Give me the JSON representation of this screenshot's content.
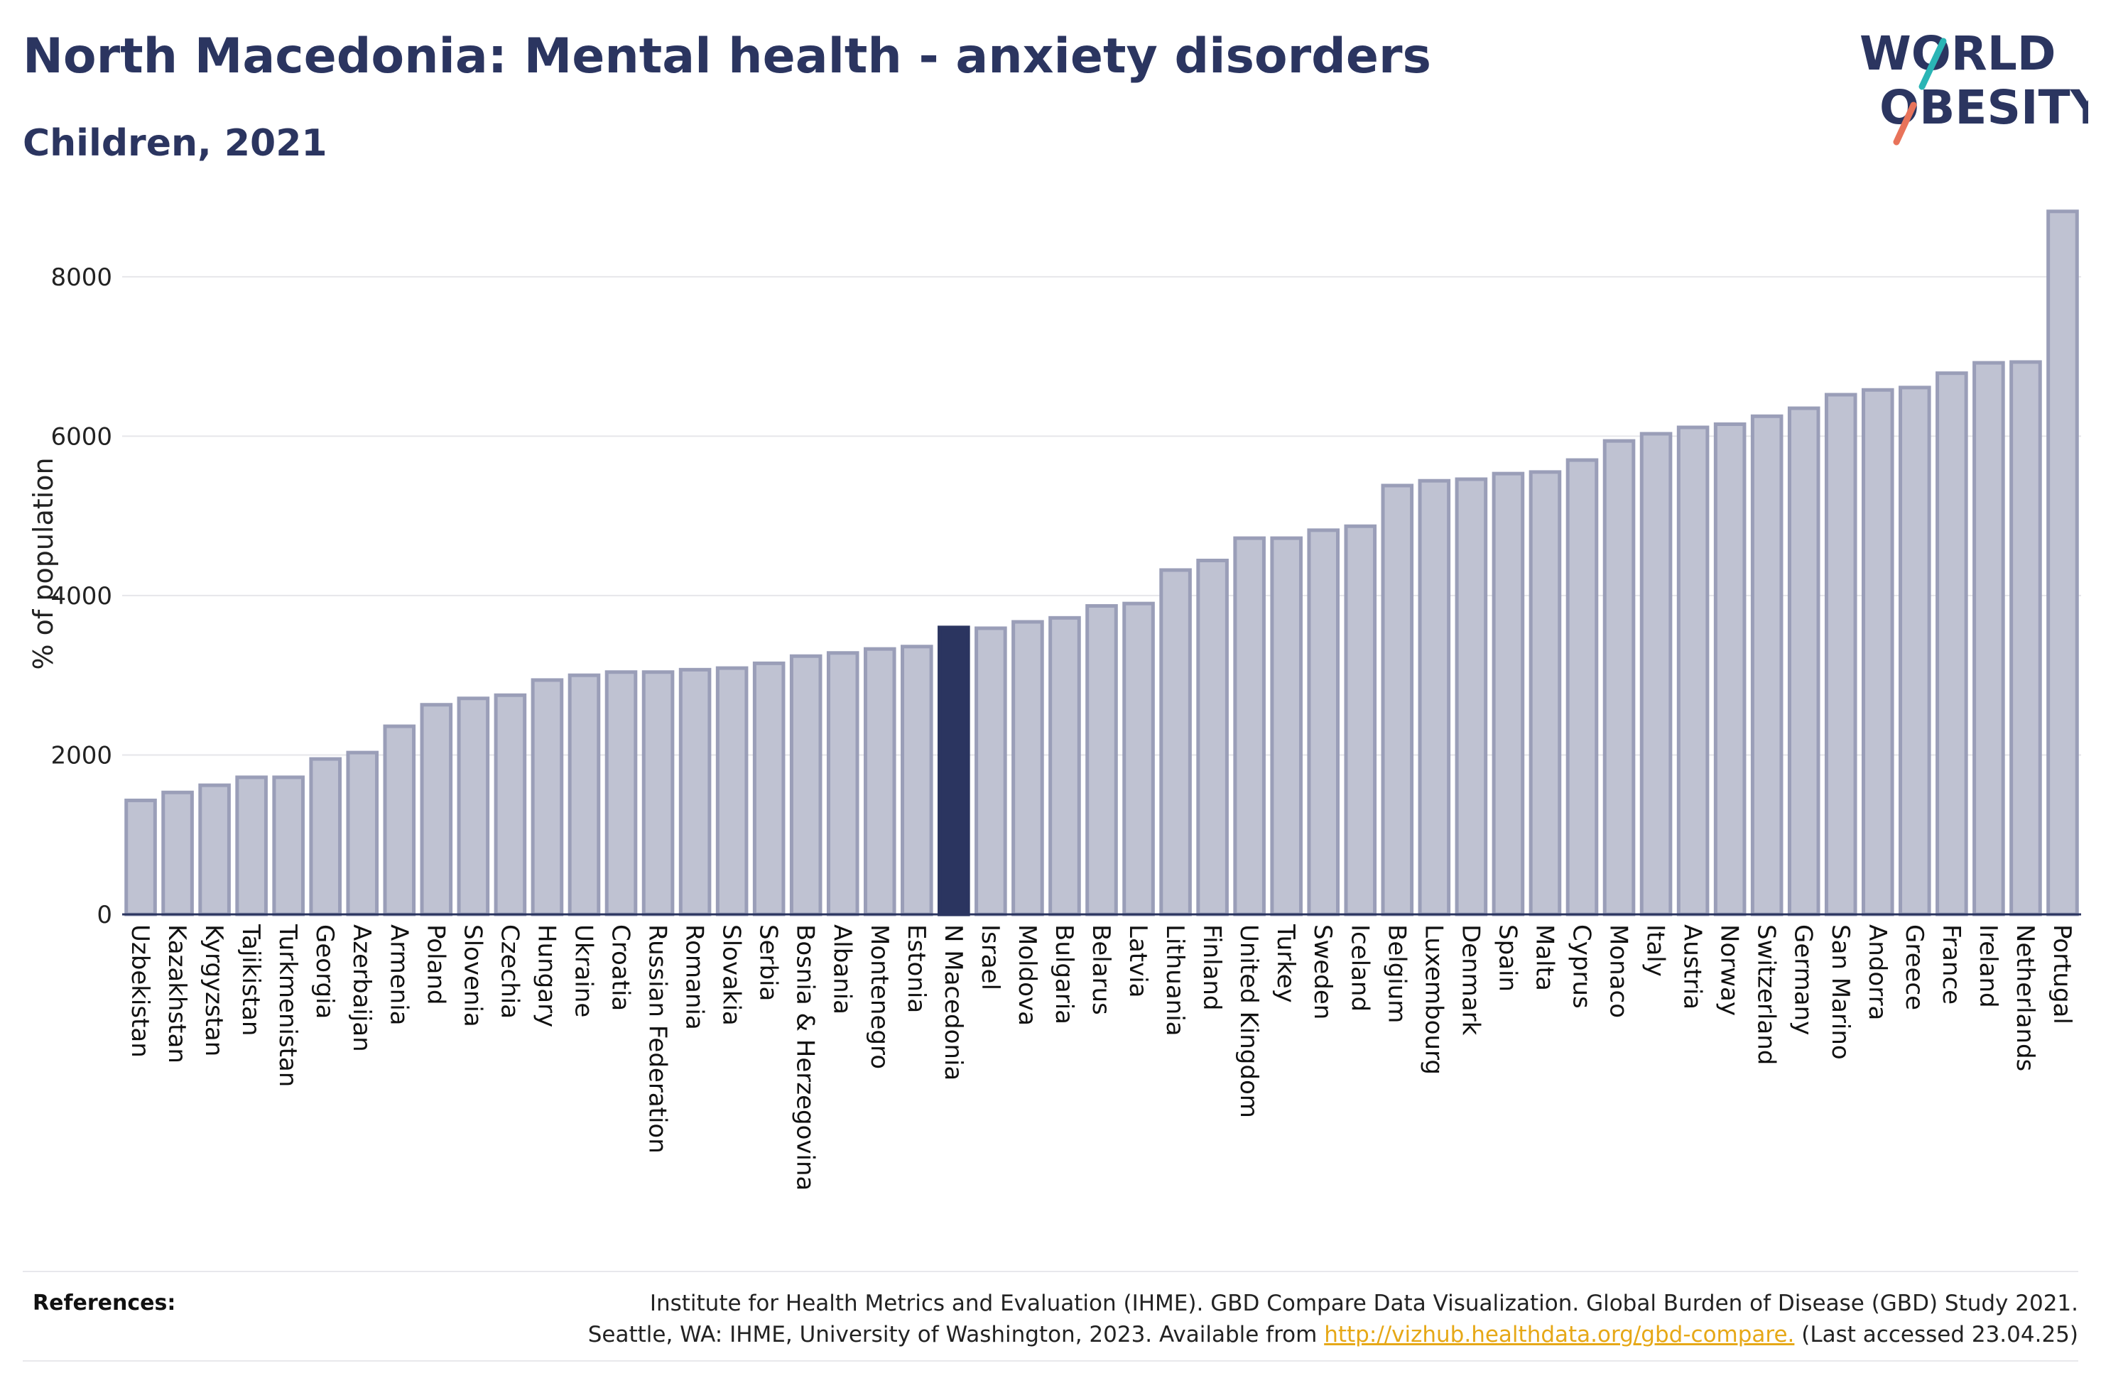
{
  "header": {
    "title": "North Macedonia: Mental health - anxiety disorders",
    "subtitle": "Children, 2021"
  },
  "logo": {
    "line1": "WORLD",
    "line2": "OBESITY"
  },
  "colors": {
    "bar": "#bfc2d2",
    "bar_border": "#9a9eb8",
    "highlight": "#2b3560",
    "text": "#2b3560",
    "grid": "#e6e6ea",
    "link": "#e6a817"
  },
  "chart_data": {
    "type": "bar",
    "ylabel": "% of population",
    "ylim": [
      0,
      8800
    ],
    "yticks": [
      0,
      2000,
      4000,
      6000,
      8000
    ],
    "grid": true,
    "highlight": "N Macedonia",
    "categories": [
      "Uzbekistan",
      "Kazakhstan",
      "Kyrgyzstan",
      "Tajikistan",
      "Turkmenistan",
      "Georgia",
      "Azerbaijan",
      "Armenia",
      "Poland",
      "Slovenia",
      "Czechia",
      "Hungary",
      "Ukraine",
      "Croatia",
      "Russian Federation",
      "Romania",
      "Slovakia",
      "Serbia",
      "Bosnia & Herzegovina",
      "Albania",
      "Montenegro",
      "Estonia",
      "N Macedonia",
      "Israel",
      "Moldova",
      "Bulgaria",
      "Belarus",
      "Latvia",
      "Lithuania",
      "Finland",
      "United Kingdom",
      "Turkey",
      "Sweden",
      "Iceland",
      "Belgium",
      "Luxembourg",
      "Denmark",
      "Spain",
      "Malta",
      "Cyprus",
      "Monaco",
      "Italy",
      "Austria",
      "Norway",
      "Switzerland",
      "Germany",
      "San Marino",
      "Andorra",
      "Greece",
      "France",
      "Ireland",
      "Netherlands",
      "Portugal"
    ],
    "values": [
      1430,
      1530,
      1620,
      1720,
      1720,
      1950,
      2030,
      2360,
      2630,
      2710,
      2750,
      2940,
      3000,
      3040,
      3040,
      3070,
      3090,
      3150,
      3240,
      3280,
      3330,
      3360,
      3600,
      3590,
      3670,
      3720,
      3870,
      3900,
      4320,
      4440,
      4720,
      4720,
      4820,
      4870,
      5380,
      5440,
      5460,
      5530,
      5550,
      5700,
      5940,
      6030,
      6110,
      6150,
      6250,
      6350,
      6520,
      6580,
      6610,
      6790,
      6920,
      6930,
      8820
    ]
  },
  "references": {
    "label": "References:",
    "line1": "Institute for Health Metrics and Evaluation (IHME). GBD Compare Data Visualization. Global Burden of Disease (GBD) Study 2021.",
    "line2_before": "Seattle, WA: IHME, University of Washington, 2023. Available from ",
    "link": "http://vizhub.healthdata.org/gbd-compare.",
    "line2_after": " (Last accessed 23.04.25)"
  }
}
